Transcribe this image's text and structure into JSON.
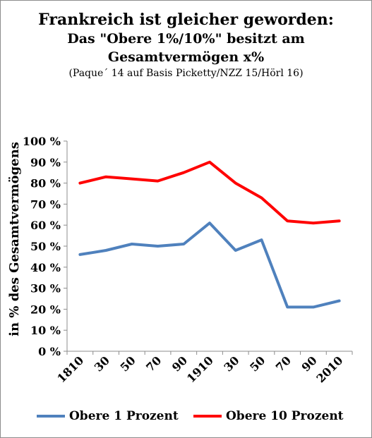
{
  "title": {
    "line1": "Frankreich ist gleicher geworden:",
    "line2": "Das \"Obere 1%/10%\" besitzt am",
    "line3": "Gesamtvermögen  x%",
    "source": "(Paque´ 14 auf Basis Picketty/NZZ 15/Hörl  16)"
  },
  "chart_data": {
    "type": "line",
    "title": "Frankreich ist gleicher geworden: Das \"Obere 1%/10%\" besitzt am Gesamtvermögen x%",
    "subtitle": "(Paque´ 14 auf Basis Picketty/NZZ 15/Hörl  16)",
    "ylabel": "in % des Gesamtvermögens",
    "xlabel": "",
    "categories": [
      "1810",
      "30",
      "50",
      "70",
      "90",
      "1910",
      "30",
      "50",
      "70",
      "90",
      "2010"
    ],
    "yticks": [
      "0 %",
      "10 %",
      "20 %",
      "30 %",
      "40 %",
      "50 %",
      "60 %",
      "70 %",
      "80 %",
      "90 %",
      "100 %"
    ],
    "ylim": [
      0,
      100
    ],
    "grid": false,
    "legend_position": "bottom",
    "series": [
      {
        "name": "Obere 1 Prozent",
        "color": "#4f81bd",
        "values": [
          46,
          48,
          51,
          50,
          51,
          61,
          48,
          53,
          21,
          21,
          24
        ]
      },
      {
        "name": "Obere 10 Prozent",
        "color": "#ff0000",
        "values": [
          80,
          83,
          82,
          81,
          85,
          90,
          80,
          73,
          62,
          61,
          62
        ]
      }
    ]
  }
}
